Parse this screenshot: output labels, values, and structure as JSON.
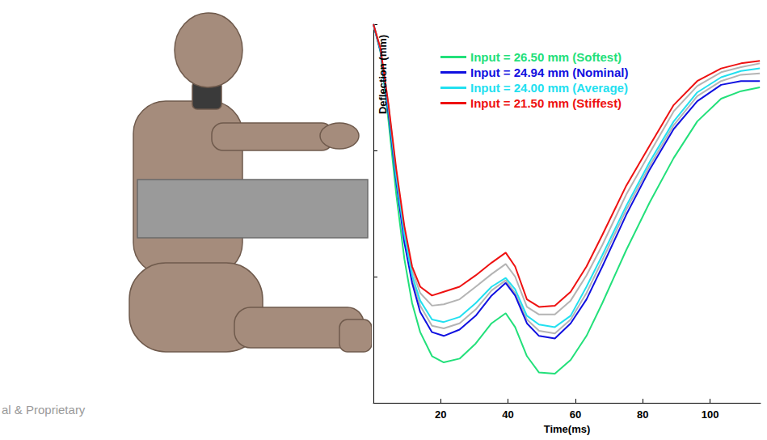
{
  "chart_data": {
    "type": "line",
    "x_label": "Time(ms)",
    "y_label": "Deflection (mm)",
    "x": [
      0,
      2.1,
      4.5,
      6.8,
      9.2,
      11.5,
      13.9,
      17.4,
      20.9,
      25.6,
      30.4,
      35.1,
      39.3,
      42.1,
      45.6,
      49.2,
      53.9,
      58.6,
      63.3,
      68.0,
      75.1,
      82.1,
      89.2,
      96.2,
      103.3,
      109.2,
      114.8
    ],
    "series": [
      {
        "color": "#b4b4b4",
        "values": [
          0,
          -2.0,
          -6.5,
          -11.8,
          -16.3,
          -19.5,
          -21.3,
          -22.3,
          -22.2,
          -21.8,
          -20.8,
          -19.8,
          -19.0,
          -20.0,
          -22.4,
          -23.0,
          -23.0,
          -21.9,
          -19.9,
          -17.5,
          -13.5,
          -10.2,
          -6.9,
          -4.9,
          -3.8,
          -3.4,
          -3.1
        ]
      },
      {
        "color": "#b4b4b4",
        "values": [
          0,
          -2.1,
          -6.9,
          -12.3,
          -17.0,
          -20.2,
          -22.3,
          -23.9,
          -24.1,
          -23.7,
          -22.6,
          -21.1,
          -20.3,
          -21.3,
          -23.4,
          -24.3,
          -24.5,
          -23.4,
          -21.3,
          -18.7,
          -14.7,
          -11.2,
          -8.0,
          -5.7,
          -4.5,
          -4.0,
          -3.9
        ]
      },
      {
        "name": "Input = 26.50 mm (Softest)",
        "color": "#22e07a",
        "values": [
          0,
          -2.2,
          -7.7,
          -13.5,
          -18.6,
          -22.1,
          -24.4,
          -26.3,
          -26.8,
          -26.5,
          -25.3,
          -23.7,
          -22.9,
          -24.0,
          -26.3,
          -27.6,
          -27.7,
          -26.6,
          -24.7,
          -22.1,
          -17.9,
          -14.1,
          -10.6,
          -7.7,
          -5.9,
          -5.3,
          -5.0
        ]
      },
      {
        "name": "Input = 24.94 mm (Nominal)",
        "color": "#1010e0",
        "values": [
          0,
          -2.1,
          -7.1,
          -12.5,
          -17.3,
          -20.5,
          -22.8,
          -24.4,
          -24.7,
          -24.2,
          -23.1,
          -21.5,
          -20.5,
          -21.5,
          -23.7,
          -24.7,
          -24.9,
          -23.7,
          -21.8,
          -19.2,
          -15.1,
          -11.5,
          -8.3,
          -6.1,
          -4.8,
          -4.5,
          -4.5
        ]
      },
      {
        "name": "Input = 24.00 mm (Average)",
        "color": "#22e0f0",
        "values": [
          0,
          -2.0,
          -6.7,
          -12.1,
          -16.7,
          -19.9,
          -21.9,
          -23.4,
          -23.6,
          -23.2,
          -22.1,
          -20.8,
          -20.1,
          -21.0,
          -23.1,
          -23.8,
          -24.0,
          -23.1,
          -20.8,
          -18.3,
          -14.4,
          -10.9,
          -7.7,
          -5.4,
          -4.2,
          -3.7,
          -3.5
        ]
      },
      {
        "name": "Input = 21.50 mm (Stiffest)",
        "color": "#ee1111",
        "values": [
          0,
          -1.9,
          -6.4,
          -11.5,
          -16.0,
          -19.2,
          -20.8,
          -21.5,
          -21.2,
          -20.8,
          -19.9,
          -18.9,
          -18.1,
          -19.2,
          -21.8,
          -22.4,
          -22.3,
          -21.2,
          -19.2,
          -16.7,
          -12.8,
          -9.6,
          -6.4,
          -4.5,
          -3.5,
          -3.1,
          -2.9
        ]
      }
    ],
    "xlim": [
      0,
      115
    ],
    "xticks": [
      20,
      40,
      60,
      80,
      100
    ],
    "ylim": [
      -30,
      0
    ],
    "yticks": [
      -30,
      -20,
      -10,
      0
    ],
    "tick_labels": "x",
    "grid": false,
    "legend": "upper left"
  },
  "footer": "al & Proprietary"
}
